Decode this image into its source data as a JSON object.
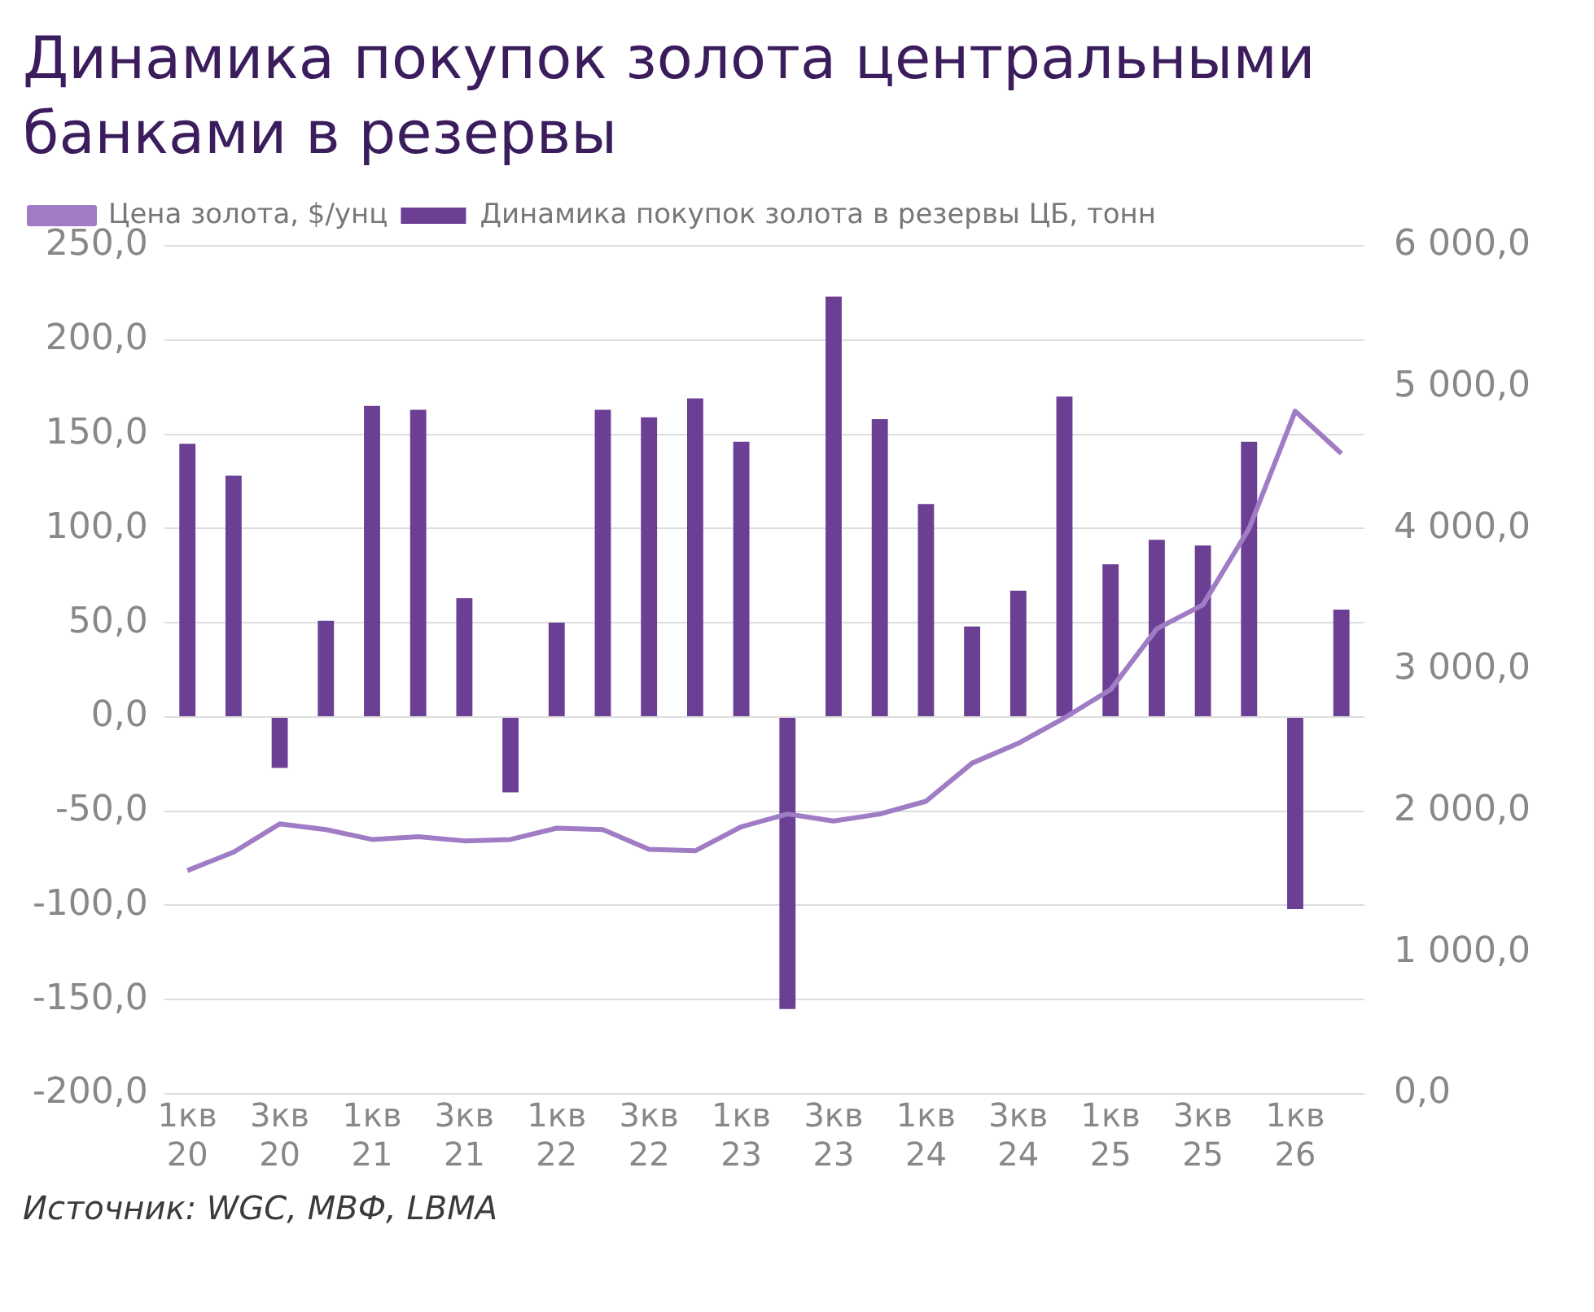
{
  "chart_data": {
    "type": "bar",
    "title": "Динамика покупок золота центральными банками в резервы",
    "categories": [
      "1кв 20",
      null,
      "3кв 20",
      null,
      "1кв 21",
      null,
      "3кв 21",
      null,
      "1кв 22",
      null,
      "3кв 22",
      null,
      "1кв 23",
      null,
      "3кв 23",
      null,
      "1кв 24",
      null,
      "3кв 24",
      null,
      "1кв 25",
      null,
      "3кв 25",
      null,
      "1кв 26",
      null
    ],
    "series": [
      {
        "name": "Динамика покупок золота в резервы ЦБ, тонн",
        "color": "#6b3f93",
        "values": [
          145,
          128,
          -27,
          51,
          165,
          163,
          63,
          -40,
          50,
          163,
          159,
          169,
          146,
          -155,
          223,
          158,
          113,
          48,
          67,
          170,
          81,
          94,
          91,
          146,
          -102,
          57
        ]
      },
      {
        "name": "Цена золота, $/унц",
        "type": "line",
        "axis": "y2",
        "color": "#a07cc5",
        "values": [
          1580,
          1710,
          1910,
          1870,
          1800,
          1820,
          1790,
          1800,
          1880,
          1870,
          1730,
          1720,
          1890,
          1980,
          1930,
          1980,
          2070,
          2340,
          2480,
          2660,
          2860,
          3290,
          3460,
          4000,
          4830,
          4530
        ]
      }
    ],
    "ylim": [
      -200,
      250
    ],
    "yticks": [
      {
        "value": -200,
        "label": "-200,0"
      },
      {
        "value": -150,
        "label": "-150,0"
      },
      {
        "value": -100,
        "label": "-100,0"
      },
      {
        "value": -50,
        "label": "-50,0"
      },
      {
        "value": 0,
        "label": "0,0"
      },
      {
        "value": 50,
        "label": "50,0"
      },
      {
        "value": 100,
        "label": "100,0"
      },
      {
        "value": 150,
        "label": "150,0"
      },
      {
        "value": 200,
        "label": "200,0"
      },
      {
        "value": 250,
        "label": "250,0"
      }
    ],
    "y2lim": [
      0,
      6000
    ],
    "y2ticks": [
      {
        "value": 0,
        "label": "0,0"
      },
      {
        "value": 1000,
        "label": "1 000,0"
      },
      {
        "value": 2000,
        "label": "2 000,0"
      },
      {
        "value": 3000,
        "label": "3 000,0"
      },
      {
        "value": 4000,
        "label": "4 000,0"
      },
      {
        "value": 5000,
        "label": "5 000,0"
      },
      {
        "value": 6000,
        "label": "6 000,0"
      }
    ],
    "grid": "y",
    "legend": "top left",
    "marker": "none",
    "line_style": "solid",
    "annotations": [
      "Источник: WGC, МВФ, LBMA"
    ]
  }
}
